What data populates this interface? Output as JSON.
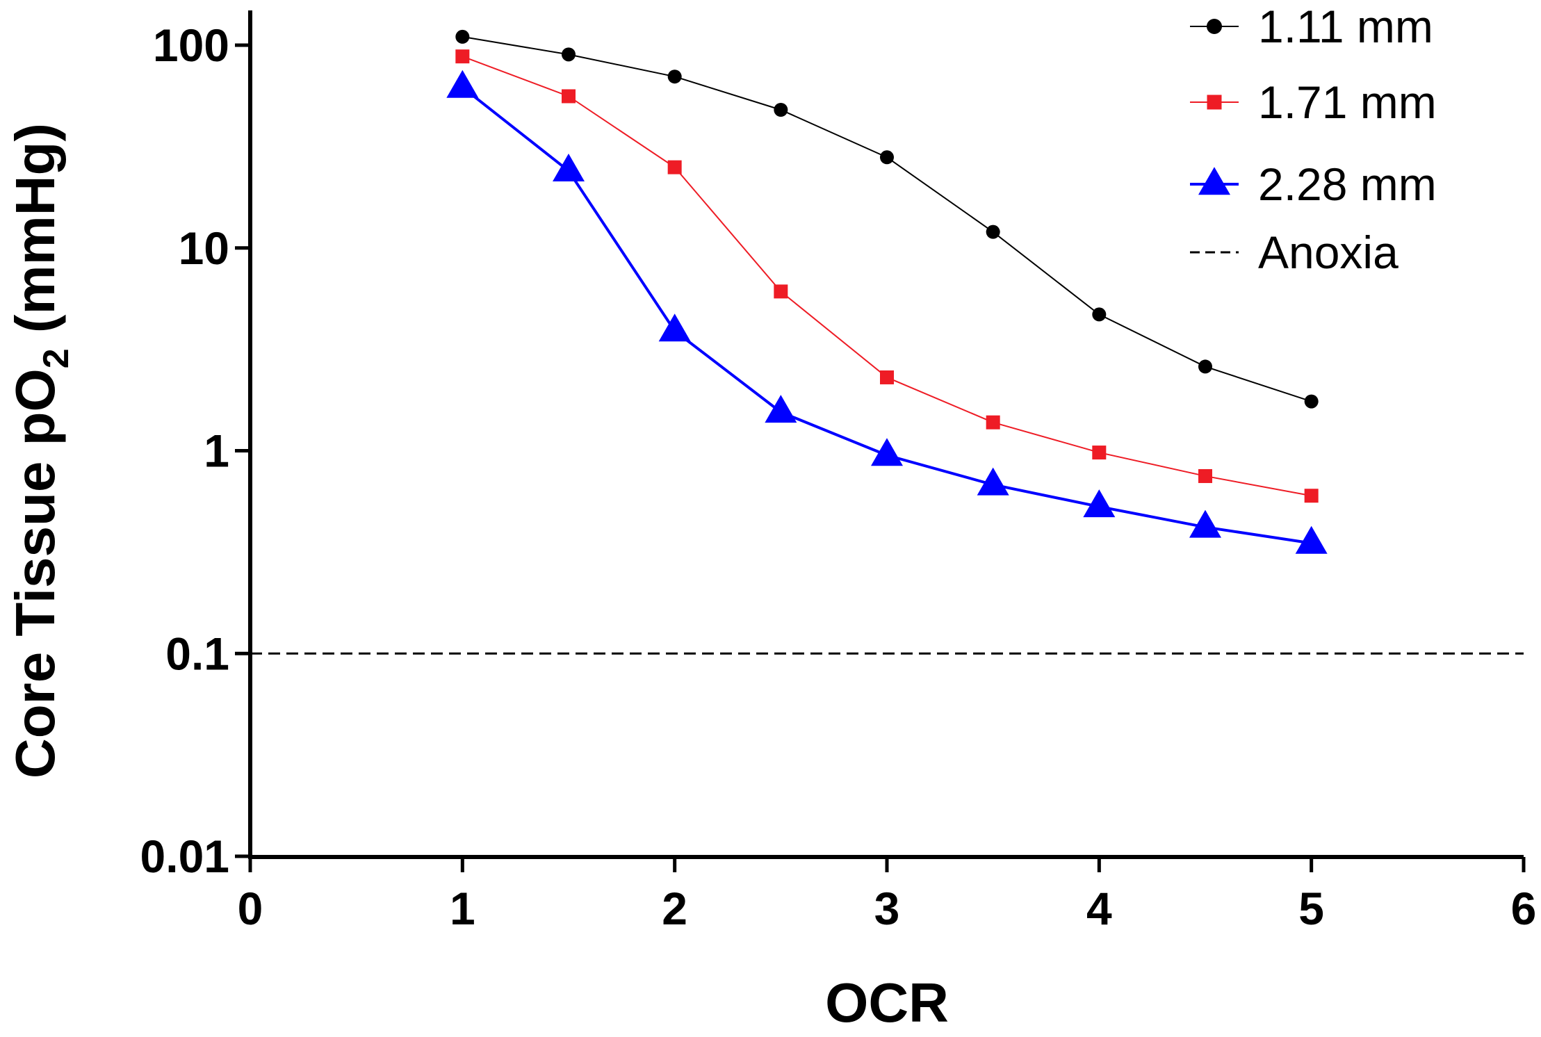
{
  "chart_data": {
    "type": "line",
    "title": "",
    "xlabel": "OCR",
    "ylabel": {
      "main": "Core Tissue pO",
      "sub": "2",
      "unit": " (mmHg)"
    },
    "yscale": "log",
    "xlim": [
      0,
      6
    ],
    "ylim": [
      0.01,
      100
    ],
    "x_ticks": [
      0,
      1,
      2,
      3,
      4,
      5,
      6
    ],
    "x_tick_labels": [
      "0",
      "1",
      "2",
      "3",
      "4",
      "5",
      "6"
    ],
    "y_ticks": [
      0.01,
      0.1,
      1,
      10,
      100
    ],
    "y_tick_labels": [
      "0.01",
      "0.1",
      "1",
      "10",
      "100"
    ],
    "x": [
      1,
      1.5,
      2,
      2.5,
      3,
      3.5,
      4,
      4.5,
      5
    ],
    "series": [
      {
        "name": "1.11 mm",
        "color": "#000000",
        "marker": "circle",
        "values": [
          110,
          90,
          70,
          48,
          28,
          12,
          4.7,
          2.6,
          1.75
        ]
      },
      {
        "name": "1.71 mm",
        "color": "#ee1c25",
        "marker": "square",
        "values": [
          88,
          56,
          25,
          6.1,
          2.3,
          1.38,
          0.98,
          0.75,
          0.6
        ]
      },
      {
        "name": "2.28 mm",
        "color": "#0000ff",
        "marker": "triangle",
        "values": [
          62,
          24,
          3.9,
          1.55,
          0.95,
          0.68,
          0.53,
          0.42,
          0.35
        ]
      }
    ],
    "reference_line": {
      "name": "Anoxia",
      "y": 0.1,
      "style": "dashed",
      "color": "#000000"
    },
    "legend_position": "top-right"
  }
}
